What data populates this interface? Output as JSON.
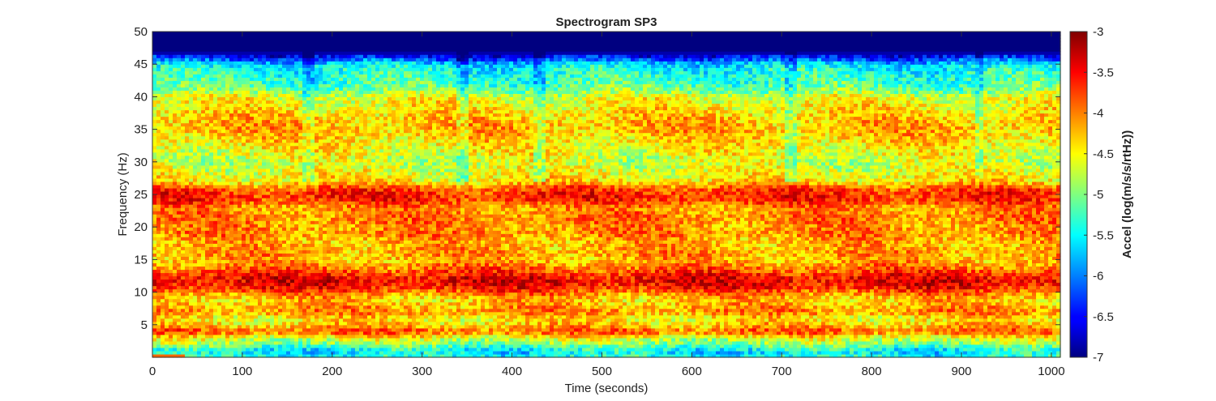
{
  "chart_data": {
    "type": "heatmap",
    "title": "Spectrogram SP3",
    "xlabel": "Time (seconds)",
    "ylabel": "Frequency (Hz)",
    "xlim": [
      0,
      1010
    ],
    "ylim": [
      0,
      50
    ],
    "xticks": [
      0,
      100,
      200,
      300,
      400,
      500,
      600,
      700,
      800,
      900,
      1000
    ],
    "xtick_labels": [
      "0",
      "100",
      "200",
      "300",
      "400",
      "500",
      "600",
      "700",
      "800",
      "900",
      "1000"
    ],
    "yticks": [
      5,
      10,
      15,
      20,
      25,
      30,
      35,
      40,
      45,
      50
    ],
    "ytick_labels": [
      "5",
      "10",
      "15",
      "20",
      "25",
      "30",
      "35",
      "40",
      "45",
      "50"
    ],
    "colormap": "jet",
    "colorbar": {
      "label": "Accel (log(m/s/s/rtHz))",
      "clim": [
        -7,
        -3
      ],
      "ticks": [
        -7,
        -6.5,
        -6,
        -5.5,
        -5,
        -4.5,
        -4,
        -3.5,
        -3
      ],
      "tick_labels": [
        "-7",
        "-6.5",
        "-6",
        "-5.5",
        "-5",
        "-4.5",
        "-4",
        "-3.5",
        "-3"
      ]
    },
    "frequency_profile": {
      "description": "approximate mean log-acceleration per frequency band",
      "frequency_hz": [
        0,
        1,
        2,
        3,
        4,
        5,
        6,
        7,
        8,
        9,
        10,
        11,
        12,
        13,
        14,
        15,
        16,
        17,
        18,
        19,
        20,
        21,
        22,
        23,
        24,
        25,
        26,
        27,
        28,
        29,
        30,
        31,
        32,
        33,
        34,
        35,
        36,
        37,
        38,
        39,
        40,
        41,
        42,
        43,
        44,
        45,
        46,
        47,
        48,
        49,
        50
      ],
      "mean_value": [
        -5.4,
        -5.6,
        -5.0,
        -4.6,
        -3.8,
        -4.3,
        -4.5,
        -4.0,
        -4.2,
        -4.3,
        -3.9,
        -3.5,
        -3.4,
        -3.7,
        -4.0,
        -4.2,
        -4.1,
        -4.2,
        -4.2,
        -4.0,
        -4.1,
        -4.0,
        -4.0,
        -4.1,
        -3.7,
        -3.6,
        -3.8,
        -4.4,
        -4.5,
        -4.6,
        -4.7,
        -4.6,
        -4.5,
        -4.4,
        -4.3,
        -4.2,
        -4.2,
        -4.3,
        -4.4,
        -4.5,
        -4.6,
        -5.0,
        -5.2,
        -5.3,
        -5.4,
        -5.6,
        -6.3,
        -7.0,
        -7.0,
        -7.0,
        -7.0
      ]
    },
    "temporal_features": {
      "description": "visible vertical striations (times in seconds)",
      "times": [
        175,
        345,
        432,
        710,
        920
      ]
    }
  }
}
